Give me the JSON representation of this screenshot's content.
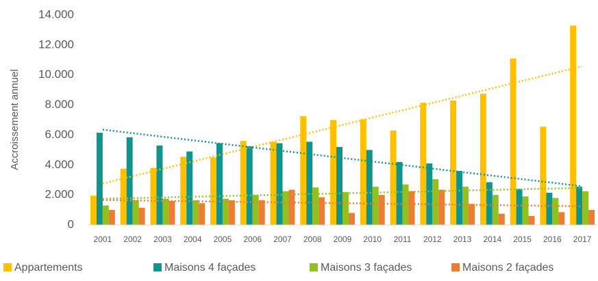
{
  "chart_data": {
    "type": "bar",
    "y_label": "Accroissement annuel",
    "categories": [
      "2001",
      "2002",
      "2003",
      "2004",
      "2005",
      "2006",
      "2007",
      "2008",
      "2009",
      "2010",
      "2011",
      "2012",
      "2013",
      "2014",
      "2015",
      "2016",
      "2017"
    ],
    "series": [
      {
        "name": "Appartements",
        "color": "#FFC000",
        "values": [
          1950,
          3750,
          3800,
          4550,
          4500,
          5600,
          5550,
          7250,
          7000,
          7050,
          6300,
          8150,
          8300,
          8750,
          11100,
          6550,
          13300
        ]
      },
      {
        "name": "Maisons 4 façades",
        "color": "#12948C",
        "values": [
          6150,
          5850,
          5300,
          4900,
          5450,
          5250,
          5450,
          5550,
          5200,
          5000,
          4200,
          4100,
          3600,
          2850,
          2400,
          2150,
          2550
        ]
      },
      {
        "name": "Maisons 3 façades",
        "color": "#92C01F",
        "values": [
          1300,
          1650,
          1750,
          1650,
          1750,
          2000,
          2250,
          2500,
          2200,
          2550,
          2700,
          3050,
          2550,
          2000,
          1900,
          1800,
          2250
        ]
      },
      {
        "name": "Maisons 2 façades",
        "color": "#ED7D31",
        "values": [
          1000,
          1150,
          1600,
          1450,
          1650,
          1650,
          2350,
          1850,
          800,
          2000,
          2250,
          2350,
          1400,
          750,
          600,
          850,
          1000
        ]
      }
    ],
    "ylim": [
      0,
      14000
    ],
    "yticks": [
      {
        "value": 0,
        "label": "0"
      },
      {
        "value": 2000,
        "label": "2.000"
      },
      {
        "value": 4000,
        "label": "4.000"
      },
      {
        "value": 6000,
        "label": "6.000"
      },
      {
        "value": 8000,
        "label": "8.000"
      },
      {
        "value": 10000,
        "label": "10.000"
      },
      {
        "value": 12000,
        "label": "12.000"
      },
      {
        "value": 14000,
        "label": "14.000"
      }
    ],
    "trendline": true,
    "grid": false,
    "legend": "bottom"
  }
}
